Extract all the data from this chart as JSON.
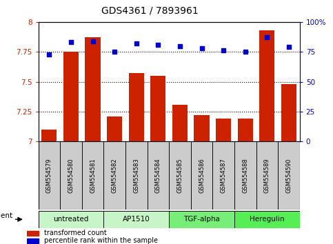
{
  "title": "GDS4361 / 7893961",
  "samples": [
    "GSM554579",
    "GSM554580",
    "GSM554581",
    "GSM554582",
    "GSM554583",
    "GSM554584",
    "GSM554585",
    "GSM554586",
    "GSM554587",
    "GSM554588",
    "GSM554589",
    "GSM554590"
  ],
  "red_values": [
    7.1,
    7.75,
    7.87,
    7.21,
    7.57,
    7.55,
    7.31,
    7.22,
    7.19,
    7.19,
    7.93,
    7.48
  ],
  "blue_values": [
    73,
    83,
    84,
    75,
    82,
    81,
    80,
    78,
    76,
    75,
    87,
    79
  ],
  "ylim_left": [
    7.0,
    8.0
  ],
  "ylim_right": [
    0,
    100
  ],
  "yticks_left": [
    7.0,
    7.25,
    7.5,
    7.75,
    8.0
  ],
  "yticks_right": [
    0,
    25,
    50,
    75,
    100
  ],
  "ytick_labels_right": [
    "0",
    "25",
    "50",
    "75",
    "100%"
  ],
  "hlines": [
    7.25,
    7.5,
    7.75
  ],
  "bar_color": "#CC2200",
  "dot_color": "#0000CC",
  "groups": [
    {
      "label": "untreated",
      "start": 0,
      "end": 3,
      "color": "#c8f5c8"
    },
    {
      "label": "AP1510",
      "start": 3,
      "end": 6,
      "color": "#c8f5c8"
    },
    {
      "label": "TGF-alpha",
      "start": 6,
      "end": 9,
      "color": "#77ee77"
    },
    {
      "label": "Heregulin",
      "start": 9,
      "end": 12,
      "color": "#55ee55"
    }
  ],
  "legend_red": "transformed count",
  "legend_blue": "percentile rank within the sample",
  "sample_box_color": "#d0d0d0",
  "plot_bg": "#ffffff"
}
